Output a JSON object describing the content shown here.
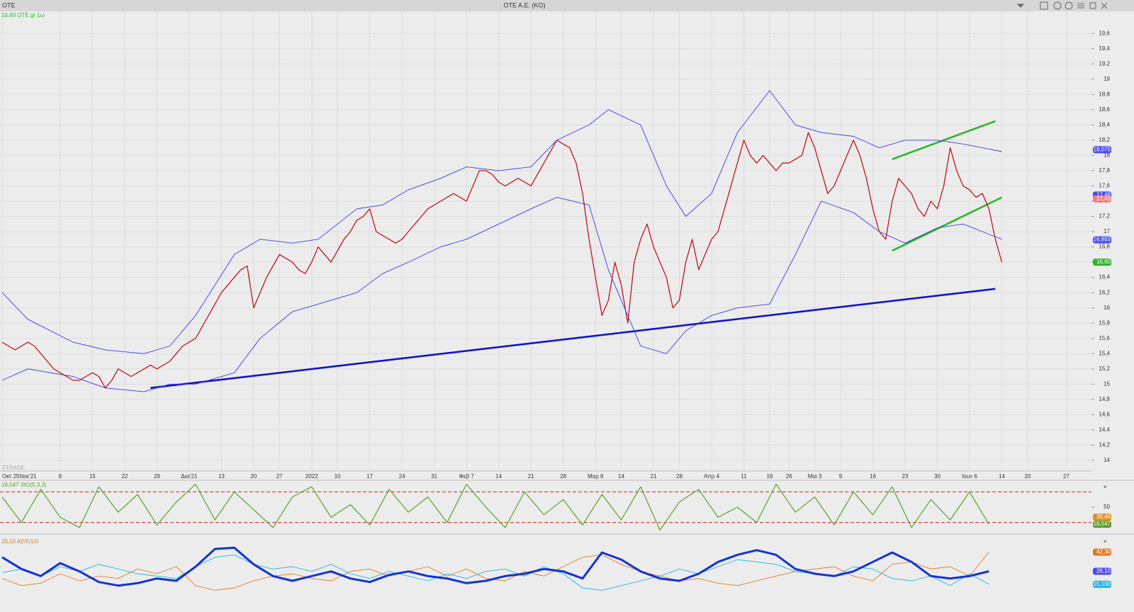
{
  "window": {
    "symbol": "OTE",
    "title": "OTE A.E. (KO)"
  },
  "chart_data": [
    {
      "type": "line",
      "label": "16,60 OTE.gr 1ω",
      "watermark": "ZTRADE",
      "categories": [
        "Οκτ 25Νοε'21",
        null,
        null,
        null,
        null,
        null,
        null,
        null,
        null,
        "8",
        null,
        null,
        null,
        null,
        "15",
        null,
        null,
        null,
        null,
        "22",
        null,
        null,
        null,
        null,
        "29",
        null,
        null,
        null,
        null,
        "Δεκ'21",
        null,
        null,
        null,
        null,
        "13",
        null,
        null,
        null,
        null,
        "20",
        null,
        null,
        null,
        "27",
        null,
        null,
        null,
        null,
        "2022",
        null,
        null,
        null,
        "10",
        null,
        null,
        null,
        null,
        "17",
        null,
        null,
        null,
        null,
        "24",
        null,
        null,
        null,
        null,
        "31",
        null,
        null,
        null,
        null,
        "Φεβ 7",
        null,
        null,
        null,
        null,
        "14",
        null,
        null,
        null,
        null,
        "21",
        null,
        null,
        null,
        null,
        "28",
        null,
        null,
        null,
        null,
        "Μαρ 8",
        null,
        null,
        null,
        "14",
        null,
        null,
        null,
        null,
        "21",
        null,
        null,
        null,
        "28",
        null,
        null,
        null,
        null,
        "Απρ 4",
        null,
        null,
        null,
        null,
        "11",
        null,
        null,
        null,
        "19",
        null,
        null,
        "26",
        null,
        null,
        null,
        "Μαι 3",
        null,
        null,
        null,
        "9",
        null,
        null,
        null,
        null,
        "16",
        null,
        null,
        null,
        null,
        "23",
        null,
        null,
        null,
        null,
        "30",
        null,
        null,
        null,
        null,
        "Ιουν 6",
        null,
        null,
        null,
        null,
        "14",
        null,
        null,
        null,
        "20",
        null,
        null,
        null,
        null,
        null,
        "27"
      ],
      "series": [
        {
          "color": "#c0141e",
          "width": 1.3,
          "values": [
            15.55,
            15.5,
            15.45,
            15.5,
            15.55,
            15.5,
            15.4,
            15.3,
            15.2,
            15.15,
            15.1,
            15.05,
            15.05,
            15.1,
            15.15,
            15.1,
            14.95,
            15.05,
            15.2,
            15.15,
            15.1,
            15.15,
            15.2,
            15.25,
            15.2,
            15.25,
            15.3,
            15.4,
            15.5,
            15.55,
            15.6,
            15.75,
            15.9,
            16.05,
            16.2,
            16.3,
            16.4,
            16.5,
            16.55,
            16.0,
            16.2,
            16.4,
            16.55,
            16.7,
            16.65,
            16.6,
            16.5,
            16.45,
            16.6,
            16.8,
            16.7,
            16.6,
            16.75,
            16.9,
            17.0,
            17.15,
            17.2,
            17.3,
            17.0,
            16.95,
            16.9,
            16.85,
            16.9,
            17.0,
            17.1,
            17.2,
            17.3,
            17.35,
            17.4,
            17.45,
            17.5,
            17.45,
            17.4,
            17.6,
            17.8,
            17.8,
            17.75,
            17.65,
            17.6,
            17.65,
            17.7,
            17.65,
            17.6,
            17.75,
            17.9,
            18.05,
            18.2,
            18.15,
            18.1,
            17.9,
            17.5,
            16.9,
            16.4,
            15.9,
            16.1,
            16.6,
            16.3,
            15.8,
            16.6,
            16.9,
            17.1,
            16.8,
            16.6,
            16.4,
            16.0,
            16.1,
            16.6,
            16.9,
            16.5,
            16.7,
            16.9,
            17.0,
            17.3,
            17.6,
            17.9,
            18.2,
            18.0,
            17.9,
            18.0,
            17.9,
            17.8,
            17.9,
            17.9,
            17.95,
            18.0,
            18.3,
            18.1,
            17.8,
            17.5,
            17.6,
            17.8,
            18.0,
            18.2,
            18.0,
            17.7,
            17.3,
            17.0,
            16.9,
            17.4,
            17.7,
            17.6,
            17.5,
            17.3,
            17.2,
            17.4,
            17.3,
            17.6,
            18.1,
            17.8,
            17.6,
            17.55,
            17.45,
            17.5,
            17.3,
            16.9,
            16.6,
            null,
            null,
            null,
            null,
            null,
            null,
            null,
            null,
            null,
            null
          ]
        },
        {
          "color": "#3b3be0",
          "width": 0.9,
          "x": [
            0,
            4,
            11,
            16,
            22,
            26,
            30,
            36,
            40,
            45,
            49,
            55,
            59,
            63,
            68,
            72,
            77,
            82,
            86,
            91,
            94,
            99,
            103,
            106,
            110,
            114,
            119,
            123,
            127,
            132,
            136,
            140,
            145,
            149,
            155
          ],
          "values": [
            16.2,
            15.85,
            15.55,
            15.45,
            15.4,
            15.5,
            15.9,
            16.7,
            16.9,
            16.85,
            16.9,
            17.3,
            17.35,
            17.55,
            17.7,
            17.85,
            17.8,
            17.85,
            18.2,
            18.4,
            18.6,
            18.4,
            17.6,
            17.2,
            17.5,
            18.3,
            18.85,
            18.4,
            18.3,
            18.25,
            18.1,
            18.2,
            18.2,
            18.15,
            18.05
          ]
        },
        {
          "color": "#3b3be0",
          "width": 0.9,
          "x": [
            0,
            4,
            11,
            16,
            22,
            26,
            30,
            36,
            40,
            45,
            49,
            55,
            59,
            63,
            68,
            72,
            77,
            82,
            86,
            91,
            94,
            99,
            103,
            106,
            110,
            114,
            119,
            123,
            127,
            132,
            136,
            140,
            145,
            149,
            155
          ],
          "values": [
            15.05,
            15.2,
            15.1,
            14.95,
            14.9,
            15.0,
            15.0,
            15.15,
            15.6,
            15.95,
            16.05,
            16.2,
            16.45,
            16.6,
            16.8,
            16.9,
            17.1,
            17.3,
            17.45,
            17.35,
            16.5,
            15.5,
            15.4,
            15.7,
            15.9,
            16.0,
            16.05,
            16.7,
            17.4,
            17.25,
            17.0,
            16.85,
            17.05,
            17.1,
            16.9
          ]
        }
      ],
      "trendlines": [
        {
          "color": "#1414c8",
          "x": [
            23,
            154
          ],
          "values": [
            14.95,
            16.25
          ]
        },
        {
          "color": "#2db52d",
          "x": [
            138,
            154
          ],
          "values": [
            17.95,
            18.45
          ]
        },
        {
          "color": "#2db52d",
          "x": [
            138,
            155
          ],
          "values": [
            16.75,
            17.45
          ]
        }
      ],
      "price_tags": [
        {
          "value": 18.075,
          "label": "18,075",
          "color": "#4a4ae8"
        },
        {
          "value": 17.48,
          "label": "17,48",
          "color": "#4a4ae8"
        },
        {
          "value": 17.43,
          "label": "17,43",
          "color": "#f08080"
        },
        {
          "value": 16.893,
          "label": "16,893",
          "color": "#4a4ae8"
        },
        {
          "value": 16.6,
          "label": "16,60",
          "color": "#2db52d"
        }
      ],
      "ylim": [
        13.86,
        19.89
      ],
      "yticks": [
        14,
        {
          "value": 14.2,
          "label": "14,2"
        },
        {
          "value": 14.4,
          "label": "14,4"
        },
        {
          "value": 14.6,
          "label": "14,6"
        },
        {
          "value": 14.8,
          "label": "14,8"
        },
        15,
        {
          "value": 15.2,
          "label": "15,2"
        },
        {
          "value": 15.4,
          "label": "15,4"
        },
        {
          "value": 15.6,
          "label": "15,6"
        },
        {
          "value": 15.8,
          "label": "15,8"
        },
        16,
        {
          "value": 16.2,
          "label": "16,2"
        },
        {
          "value": 16.4,
          "label": "16,4"
        },
        {
          "value": 16.6,
          "label": "16,6"
        },
        {
          "value": 16.8,
          "label": "16,8"
        },
        17,
        {
          "value": 17.2,
          "label": "17,2"
        },
        {
          "value": 17.4,
          "label": "17,4"
        },
        {
          "value": 17.6,
          "label": "17,6"
        },
        {
          "value": 17.8,
          "label": "17,8"
        },
        18,
        {
          "value": 18.2,
          "label": "18,2"
        },
        {
          "value": 18.4,
          "label": "18,4"
        },
        {
          "value": 18.6,
          "label": "18,6"
        },
        {
          "value": 18.8,
          "label": "18,8"
        },
        19,
        {
          "value": 19.2,
          "label": "19,2"
        },
        {
          "value": 19.4,
          "label": "19,4"
        },
        {
          "value": 19.6,
          "label": "19,6"
        }
      ],
      "grid": true
    },
    {
      "type": "line",
      "label": "16,547 StO(5,3,3)",
      "x": [
        0,
        3,
        6,
        9,
        12,
        15,
        18,
        21,
        24,
        27,
        30,
        33,
        36,
        39,
        42,
        45,
        48,
        51,
        54,
        57,
        60,
        63,
        66,
        69,
        72,
        75,
        78,
        81,
        84,
        87,
        90,
        93,
        96,
        99,
        102,
        105,
        108,
        111,
        114,
        117,
        120,
        123,
        126,
        129,
        132,
        135,
        138,
        141,
        144,
        147,
        150,
        153
      ],
      "series": [
        {
          "color": "#5aa02a",
          "width": 1.2,
          "values": [
            70,
            20,
            85,
            30,
            10,
            90,
            40,
            75,
            15,
            60,
            95,
            25,
            80,
            45,
            10,
            70,
            90,
            30,
            55,
            15,
            85,
            40,
            70,
            20,
            95,
            50,
            10,
            80,
            35,
            65,
            15,
            75,
            25,
            90,
            5,
            60,
            85,
            30,
            50,
            20,
            95,
            40,
            70,
            15,
            80,
            35,
            90,
            10,
            65,
            25,
            80,
            16.5
          ]
        }
      ],
      "levels": [
        80,
        20
      ],
      "price_tags": [
        {
          "value": 30.44,
          "label": "30,44",
          "color": "#e0902a"
        },
        {
          "value": 16.547,
          "label": "16,547",
          "color": "#5aa02a"
        }
      ],
      "ylim": [
        0,
        100
      ],
      "yticks": [
        50
      ]
    },
    {
      "type": "line",
      "label": "26,10 ADX(14)",
      "x": [
        0,
        3,
        6,
        9,
        12,
        15,
        18,
        21,
        24,
        27,
        30,
        33,
        36,
        39,
        42,
        45,
        48,
        51,
        54,
        57,
        60,
        63,
        66,
        69,
        72,
        75,
        78,
        81,
        84,
        87,
        90,
        93,
        96,
        99,
        102,
        105,
        108,
        111,
        114,
        117,
        120,
        123,
        126,
        129,
        132,
        135,
        138,
        141,
        144,
        147,
        150,
        153
      ],
      "series": [
        {
          "color": "#e07a20",
          "width": 0.9,
          "values": [
            20,
            14,
            16,
            24,
            18,
            22,
            20,
            28,
            24,
            30,
            14,
            10,
            12,
            18,
            22,
            24,
            20,
            18,
            26,
            28,
            22,
            26,
            30,
            22,
            28,
            20,
            18,
            26,
            22,
            30,
            38,
            40,
            32,
            26,
            22,
            18,
            20,
            16,
            14,
            18,
            22,
            26,
            28,
            30,
            22,
            18,
            32,
            34,
            28,
            30,
            22,
            42.3
          ]
        },
        {
          "color": "#1eb4e6",
          "width": 0.9,
          "values": [
            25,
            28,
            22,
            30,
            26,
            32,
            28,
            24,
            22,
            20,
            30,
            38,
            40,
            32,
            28,
            30,
            26,
            32,
            24,
            20,
            26,
            22,
            18,
            24,
            20,
            26,
            28,
            22,
            30,
            24,
            12,
            10,
            14,
            18,
            22,
            28,
            24,
            30,
            36,
            34,
            32,
            26,
            24,
            22,
            30,
            28,
            20,
            18,
            22,
            14,
            24,
            15.1
          ]
        },
        {
          "color": "#1432d2",
          "width": 3,
          "values": [
            38,
            28,
            22,
            33,
            26,
            17,
            14,
            16,
            20,
            18,
            30,
            45,
            46,
            32,
            22,
            18,
            22,
            26,
            20,
            17,
            23,
            26,
            22,
            20,
            16,
            18,
            22,
            24,
            28,
            26,
            20,
            42,
            36,
            26,
            20,
            18,
            24,
            34,
            40,
            44,
            40,
            28,
            24,
            22,
            26,
            34,
            42,
            34,
            22,
            20,
            22,
            26.1
          ]
        }
      ],
      "price_tags": [
        {
          "value": 42.3,
          "label": "42,30",
          "color": "#e07a20"
        },
        {
          "value": 26.1,
          "label": "26,10",
          "color": "#4a4ae8"
        },
        {
          "value": 15.1,
          "label": "15,100",
          "color": "#1eb4e6"
        }
      ],
      "ylim": [
        0,
        54
      ]
    }
  ]
}
